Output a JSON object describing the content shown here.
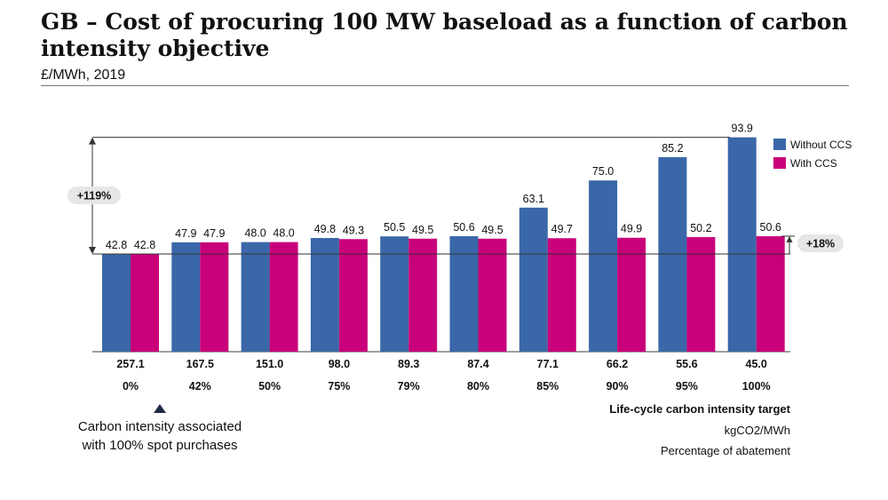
{
  "header": {
    "title": "GB – Cost of procuring 100 MW baseload as a function of carbon intensity objective",
    "subtitle": "£/MWh, 2019"
  },
  "annotations": {
    "left_delta": "+119%",
    "right_delta": "+18%",
    "spot_note_line1": "Carbon intensity associated",
    "spot_note_line2": "with 100% spot purchases"
  },
  "axis_titles": {
    "main": "Life-cycle carbon intensity target",
    "row1": "kgCO2/MWh",
    "row2": "Percentage of abatement"
  },
  "colors": {
    "without_ccs": "#3a67a8",
    "with_ccs": "#c8007a"
  },
  "chart_data": {
    "type": "bar",
    "title": "GB – Cost of procuring 100 MW baseload as a function of carbon intensity objective",
    "ylabel": "£/MWh, 2019",
    "xlabel": "Life-cycle carbon intensity target",
    "categories": [
      "257.1",
      "167.5",
      "151.0",
      "98.0",
      "89.3",
      "87.4",
      "77.1",
      "66.2",
      "55.6",
      "45.0"
    ],
    "category_sublabels": [
      "0%",
      "42%",
      "50%",
      "75%",
      "79%",
      "80%",
      "85%",
      "90%",
      "95%",
      "100%"
    ],
    "series": [
      {
        "name": "Without CCS",
        "values": [
          42.8,
          47.9,
          48.0,
          49.8,
          50.5,
          50.6,
          63.1,
          75.0,
          85.2,
          93.9
        ]
      },
      {
        "name": "With CCS",
        "values": [
          42.8,
          47.9,
          48.0,
          49.3,
          49.5,
          49.5,
          49.7,
          49.9,
          50.2,
          50.6
        ]
      }
    ],
    "ylim": [
      0,
      100
    ],
    "grid": false,
    "legend_position": "top-right"
  }
}
